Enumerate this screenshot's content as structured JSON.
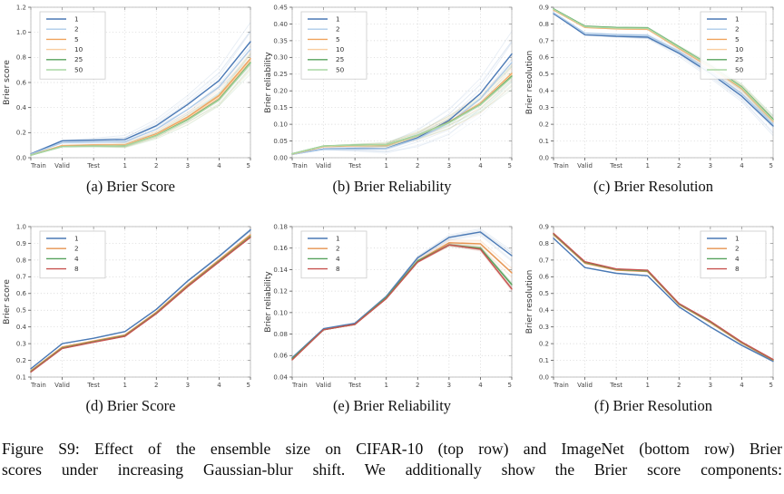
{
  "figure": {
    "caption_line1": "Figure S9: Effect of the ensemble size on CIFAR-10 (top row) and ImageNet (bottom row) Brier",
    "caption_line2": "scores under increasing Gaussian-blur shift.  We additionally show the Brier score components:"
  },
  "chart_data": [
    {
      "id": "a",
      "type": "line",
      "caption": "(a) Brier Score",
      "dataset": "CIFAR-10",
      "xlabel": "",
      "ylabel": "Brier score",
      "categories": [
        "Train",
        "Valid",
        "Test",
        "1",
        "2",
        "3",
        "4",
        "5"
      ],
      "ylim": [
        0.0,
        1.2
      ],
      "yticks": [
        "0.0",
        "0.2",
        "0.4",
        "0.6",
        "0.8",
        "1.0",
        "1.2"
      ],
      "grid": true,
      "legend_position": "upper-left",
      "spread": 0.17,
      "series": [
        {
          "name": "1",
          "color": "#4a79b5",
          "values": [
            0.03,
            0.135,
            0.14,
            0.145,
            0.255,
            0.425,
            0.615,
            0.925
          ]
        },
        {
          "name": "2",
          "color": "#aecbe8",
          "values": [
            0.027,
            0.12,
            0.125,
            0.128,
            0.228,
            0.385,
            0.565,
            0.865
          ]
        },
        {
          "name": "5",
          "color": "#f0a35c",
          "values": [
            0.022,
            0.097,
            0.101,
            0.102,
            0.19,
            0.325,
            0.495,
            0.79
          ]
        },
        {
          "name": "10",
          "color": "#f8cda0",
          "values": [
            0.021,
            0.092,
            0.096,
            0.097,
            0.182,
            0.312,
            0.478,
            0.772
          ]
        },
        {
          "name": "25",
          "color": "#57a25c",
          "values": [
            0.02,
            0.089,
            0.093,
            0.094,
            0.177,
            0.304,
            0.465,
            0.758
          ]
        },
        {
          "name": "50",
          "color": "#a9d7a3",
          "values": [
            0.02,
            0.088,
            0.092,
            0.093,
            0.175,
            0.3,
            0.46,
            0.752
          ]
        }
      ]
    },
    {
      "id": "b",
      "type": "line",
      "caption": "(b) Brier Reliability",
      "dataset": "CIFAR-10",
      "xlabel": "",
      "ylabel": "Brier reliability",
      "categories": [
        "Train",
        "Valid",
        "Test",
        "1",
        "2",
        "3",
        "4",
        "5"
      ],
      "ylim": [
        0.0,
        0.45
      ],
      "yticks": [
        "0.00",
        "0.05",
        "0.10",
        "0.15",
        "0.20",
        "0.25",
        "0.30",
        "0.35",
        "0.40",
        "0.45"
      ],
      "grid": true,
      "legend_position": "upper-left",
      "spread": 0.075,
      "series": [
        {
          "name": "1",
          "color": "#4a79b5",
          "values": [
            0.01,
            0.026,
            0.027,
            0.028,
            0.06,
            0.112,
            0.192,
            0.31
          ]
        },
        {
          "name": "2",
          "color": "#aecbe8",
          "values": [
            0.01,
            0.025,
            0.026,
            0.027,
            0.057,
            0.104,
            0.176,
            0.285
          ]
        },
        {
          "name": "5",
          "color": "#f0a35c",
          "values": [
            0.011,
            0.033,
            0.036,
            0.037,
            0.066,
            0.107,
            0.163,
            0.252
          ]
        },
        {
          "name": "10",
          "color": "#f8cda0",
          "values": [
            0.011,
            0.034,
            0.037,
            0.038,
            0.066,
            0.106,
            0.161,
            0.248
          ]
        },
        {
          "name": "25",
          "color": "#57a25c",
          "values": [
            0.012,
            0.035,
            0.038,
            0.039,
            0.067,
            0.106,
            0.159,
            0.244
          ]
        },
        {
          "name": "50",
          "color": "#a9d7a3",
          "values": [
            0.012,
            0.035,
            0.038,
            0.039,
            0.067,
            0.105,
            0.158,
            0.241
          ]
        }
      ]
    },
    {
      "id": "c",
      "type": "line",
      "caption": "(c) Brier Resolution",
      "dataset": "CIFAR-10",
      "xlabel": "",
      "ylabel": "Brier resolution",
      "categories": [
        "Train",
        "Valid",
        "Test",
        "1",
        "2",
        "3",
        "4",
        "5"
      ],
      "ylim": [
        0.0,
        0.9
      ],
      "yticks": [
        "0.0",
        "0.1",
        "0.2",
        "0.3",
        "0.4",
        "0.5",
        "0.6",
        "0.7",
        "0.8",
        "0.9"
      ],
      "grid": true,
      "legend_position": "upper-right",
      "spread": 0.055,
      "series": [
        {
          "name": "1",
          "color": "#4a79b5",
          "values": [
            0.862,
            0.735,
            0.726,
            0.721,
            0.625,
            0.505,
            0.368,
            0.19
          ]
        },
        {
          "name": "2",
          "color": "#aecbe8",
          "values": [
            0.868,
            0.746,
            0.737,
            0.732,
            0.636,
            0.518,
            0.382,
            0.2
          ]
        },
        {
          "name": "5",
          "color": "#f0a35c",
          "values": [
            0.884,
            0.779,
            0.771,
            0.769,
            0.654,
            0.54,
            0.413,
            0.218
          ]
        },
        {
          "name": "10",
          "color": "#f8cda0",
          "values": [
            0.887,
            0.782,
            0.774,
            0.772,
            0.658,
            0.545,
            0.418,
            0.222
          ]
        },
        {
          "name": "25",
          "color": "#57a25c",
          "values": [
            0.89,
            0.787,
            0.779,
            0.777,
            0.663,
            0.551,
            0.424,
            0.23
          ]
        },
        {
          "name": "50",
          "color": "#a9d7a3",
          "values": [
            0.888,
            0.784,
            0.776,
            0.774,
            0.66,
            0.548,
            0.42,
            0.225
          ]
        }
      ]
    },
    {
      "id": "d",
      "type": "line",
      "caption": "(d) Brier Score",
      "dataset": "ImageNet",
      "xlabel": "",
      "ylabel": "Brier score",
      "categories": [
        "Train",
        "Valid",
        "Test",
        "1",
        "2",
        "3",
        "4",
        "5"
      ],
      "ylim": [
        0.1,
        1.0
      ],
      "yticks": [
        "0.1",
        "0.2",
        "0.3",
        "0.4",
        "0.5",
        "0.6",
        "0.7",
        "0.8",
        "0.9",
        "1.0"
      ],
      "grid": true,
      "legend_position": "upper-left",
      "spread": 0.008,
      "series": [
        {
          "name": "1",
          "color": "#4a79b5",
          "values": [
            0.15,
            0.3,
            0.332,
            0.372,
            0.505,
            0.675,
            0.822,
            0.98
          ]
        },
        {
          "name": "2",
          "color": "#e6934f",
          "values": [
            0.138,
            0.28,
            0.316,
            0.352,
            0.488,
            0.652,
            0.8,
            0.95
          ]
        },
        {
          "name": "4",
          "color": "#57a25c",
          "values": [
            0.133,
            0.274,
            0.311,
            0.347,
            0.482,
            0.645,
            0.793,
            0.941
          ]
        },
        {
          "name": "8",
          "color": "#c75450",
          "values": [
            0.13,
            0.271,
            0.308,
            0.344,
            0.479,
            0.641,
            0.789,
            0.936
          ]
        }
      ]
    },
    {
      "id": "e",
      "type": "line",
      "caption": "(e) Brier Reliability",
      "dataset": "ImageNet",
      "xlabel": "",
      "ylabel": "Brier reliability",
      "categories": [
        "Train",
        "Valid",
        "Test",
        "1",
        "2",
        "3",
        "4",
        "5"
      ],
      "ylim": [
        0.04,
        0.18
      ],
      "yticks": [
        "0.04",
        "0.06",
        "0.08",
        "0.10",
        "0.12",
        "0.14",
        "0.16",
        "0.18"
      ],
      "grid": true,
      "legend_position": "upper-left",
      "spread": 0.005,
      "series": [
        {
          "name": "1",
          "color": "#4a79b5",
          "values": [
            0.058,
            0.085,
            0.09,
            0.115,
            0.151,
            0.17,
            0.175,
            0.153
          ]
        },
        {
          "name": "2",
          "color": "#e6934f",
          "values": [
            0.057,
            0.084,
            0.089,
            0.114,
            0.148,
            0.165,
            0.164,
            0.137
          ]
        },
        {
          "name": "4",
          "color": "#57a25c",
          "values": [
            0.057,
            0.084,
            0.089,
            0.114,
            0.148,
            0.163,
            0.16,
            0.126
          ]
        },
        {
          "name": "8",
          "color": "#c75450",
          "values": [
            0.056,
            0.084,
            0.089,
            0.113,
            0.147,
            0.163,
            0.159,
            0.122
          ]
        }
      ]
    },
    {
      "id": "f",
      "type": "line",
      "caption": "(f) Brier Resolution",
      "dataset": "ImageNet",
      "xlabel": "",
      "ylabel": "Brier resolution",
      "categories": [
        "Train",
        "Valid",
        "Test",
        "1",
        "2",
        "3",
        "4",
        "5"
      ],
      "ylim": [
        0.0,
        0.9
      ],
      "yticks": [
        "0.0",
        "0.1",
        "0.2",
        "0.3",
        "0.4",
        "0.5",
        "0.6",
        "0.7",
        "0.8",
        "0.9"
      ],
      "grid": true,
      "legend_position": "upper-right",
      "spread": 0.006,
      "series": [
        {
          "name": "1",
          "color": "#4a79b5",
          "values": [
            0.83,
            0.655,
            0.621,
            0.606,
            0.42,
            0.3,
            0.19,
            0.095
          ]
        },
        {
          "name": "2",
          "color": "#e6934f",
          "values": [
            0.851,
            0.681,
            0.64,
            0.631,
            0.434,
            0.326,
            0.204,
            0.101
          ]
        },
        {
          "name": "4",
          "color": "#57a25c",
          "values": [
            0.856,
            0.686,
            0.644,
            0.635,
            0.437,
            0.33,
            0.207,
            0.103
          ]
        },
        {
          "name": "8",
          "color": "#c75450",
          "values": [
            0.86,
            0.69,
            0.647,
            0.639,
            0.44,
            0.334,
            0.21,
            0.105
          ]
        }
      ]
    }
  ]
}
